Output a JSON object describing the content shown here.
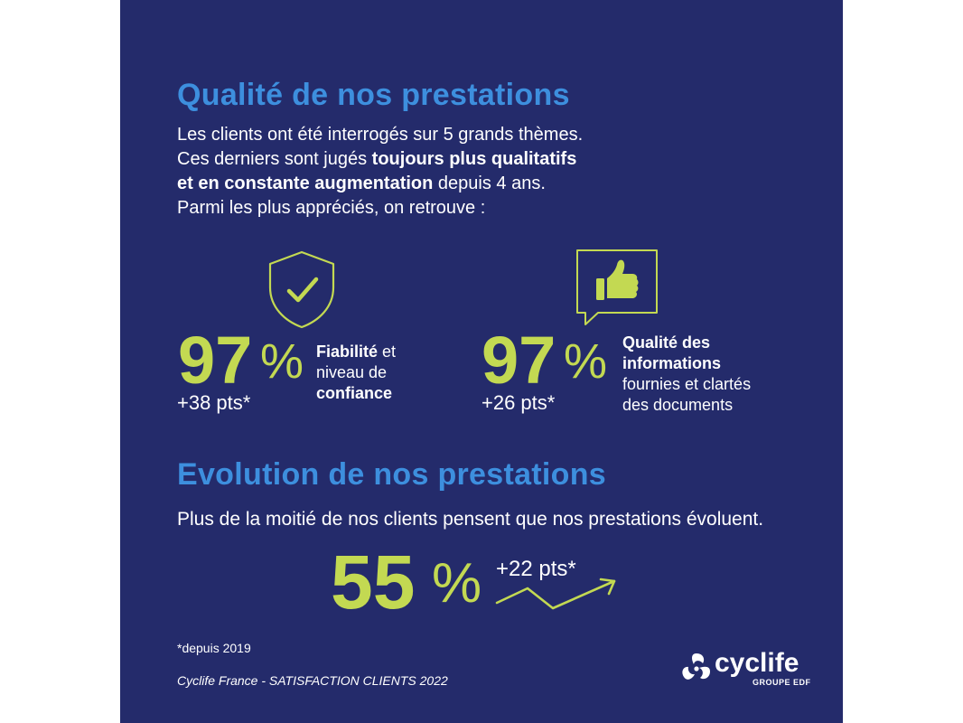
{
  "colors": {
    "background": "#242b6b",
    "heading": "#3d8fde",
    "accent_green": "#c3d952",
    "text": "#ffffff"
  },
  "section1": {
    "title": "Qualité de nos prestations",
    "intro_line1": "Les clients ont été interrogés sur 5 grands thèmes.",
    "intro_line2_a": "Ces derniers sont jugés ",
    "intro_line2_bold": "toujours plus qualitatifs",
    "intro_line3_bold": "et en constante augmentation",
    "intro_line3_b": " depuis 4 ans.",
    "intro_line4": "Parmi les plus appréciés, on retrouve :"
  },
  "stat_reliability": {
    "icon": "shield-check-icon",
    "value": "97",
    "percent_sign": "%",
    "delta": "+38 pts*",
    "label_bold1": "Fiabilité",
    "label_text1": " et",
    "label_text2": "niveau de",
    "label_bold2": "confiance"
  },
  "stat_information": {
    "icon": "thumbs-up-bubble-icon",
    "value": "97",
    "percent_sign": "%",
    "delta": "+26 pts*",
    "label_bold1": "Qualité des",
    "label_bold2": "informations",
    "label_text1": "fournies et clartés",
    "label_text2": "des documents"
  },
  "section2": {
    "title": "Evolution de nos prestations",
    "text": "Plus de la moitié de nos clients pensent que nos prestations évoluent.",
    "value": "55",
    "percent_sign": "%",
    "delta": "+22 pts*",
    "icon": "trend-up-arrow-icon"
  },
  "footer": {
    "footnote": "*depuis 2019",
    "source": "Cyclife France - SATISFACTION CLIENTS 2022",
    "brand_name": "cyclife",
    "brand_sub": "GROUPE EDF"
  }
}
